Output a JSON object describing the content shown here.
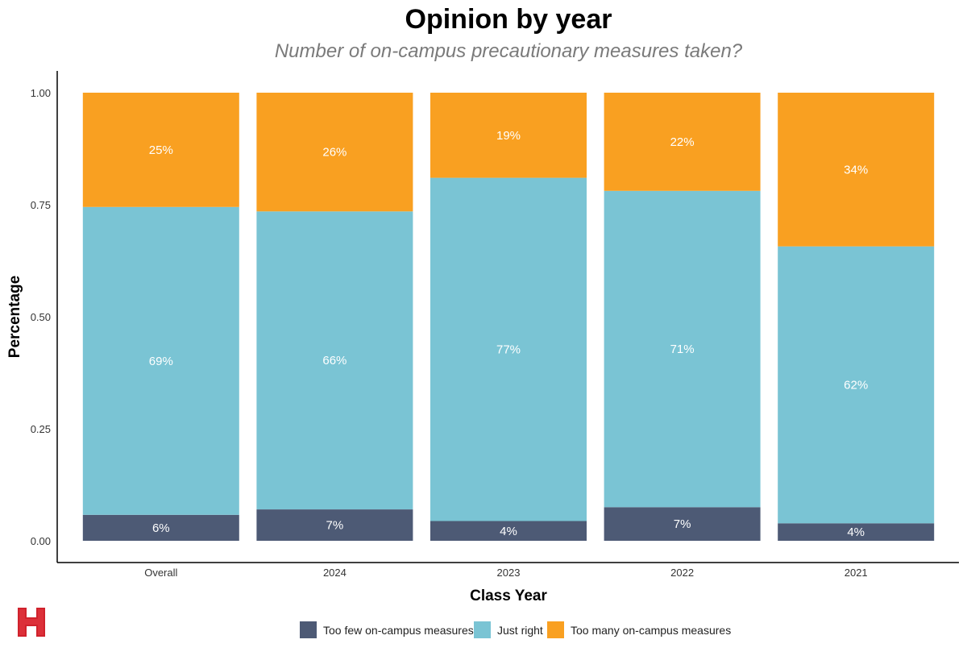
{
  "chart_data": {
    "type": "bar",
    "stacked": true,
    "title": "Opinion by year",
    "subtitle": "Number of on-campus precautionary measures taken?",
    "xlabel": "Class Year",
    "ylabel": "Percentage",
    "ylim": [
      0,
      1
    ],
    "yticks": [
      "0.00",
      "0.25",
      "0.50",
      "0.75",
      "1.00"
    ],
    "categories": [
      "Overall",
      "2024",
      "2023",
      "2022",
      "2021"
    ],
    "series": [
      {
        "name": "Too few on-campus measures",
        "color": "#4d5a75",
        "values": [
          0.058,
          0.07,
          0.044,
          0.075,
          0.039
        ],
        "labels": [
          "6%",
          "7%",
          "4%",
          "7%",
          "4%"
        ]
      },
      {
        "name": "Just right",
        "color": "#7ac4d4",
        "values": [
          0.687,
          0.665,
          0.766,
          0.706,
          0.618
        ],
        "labels": [
          "69%",
          "66%",
          "77%",
          "71%",
          "62%"
        ]
      },
      {
        "name": "Too many on-campus measures",
        "color": "#f9a021",
        "values": [
          0.255,
          0.265,
          0.19,
          0.219,
          0.343
        ],
        "labels": [
          "25%",
          "26%",
          "19%",
          "22%",
          "34%"
        ]
      }
    ],
    "legend_position": "bottom"
  },
  "logo": {
    "text": "H",
    "color": "#d0222c"
  }
}
